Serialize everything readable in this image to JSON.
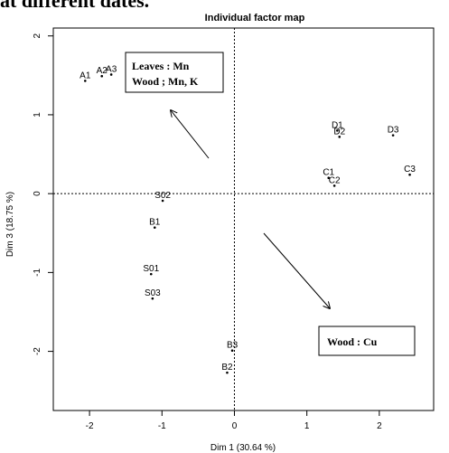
{
  "caption": "at different dates.",
  "chart_data": {
    "type": "scatter",
    "title": "Individual factor map",
    "xlabel": "Dim 1 (30.64 %)",
    "ylabel": "Dim 3 (18.75 %)",
    "xlim": [
      -2.5,
      2.75
    ],
    "ylim": [
      -2.75,
      2.1
    ],
    "xticks": [
      -2,
      -1,
      0,
      1,
      2
    ],
    "yticks": [
      -2,
      -1,
      0,
      1,
      2
    ],
    "reference_lines": {
      "x": 0,
      "y": 0,
      "style": "dotted"
    },
    "points": [
      {
        "label": "A1",
        "x": -2.06,
        "y": 1.43
      },
      {
        "label": "A2",
        "x": -1.83,
        "y": 1.49
      },
      {
        "label": "A3",
        "x": -1.7,
        "y": 1.51
      },
      {
        "label": "D1",
        "x": 1.42,
        "y": 0.8
      },
      {
        "label": "D2",
        "x": 1.45,
        "y": 0.72
      },
      {
        "label": "D3",
        "x": 2.19,
        "y": 0.74
      },
      {
        "label": "C1",
        "x": 1.3,
        "y": 0.2
      },
      {
        "label": "C2",
        "x": 1.38,
        "y": 0.1
      },
      {
        "label": "C3",
        "x": 2.42,
        "y": 0.24
      },
      {
        "label": "S02",
        "x": -0.99,
        "y": -0.09
      },
      {
        "label": "B1",
        "x": -1.1,
        "y": -0.43
      },
      {
        "label": "S01",
        "x": -1.15,
        "y": -1.02
      },
      {
        "label": "S03",
        "x": -1.13,
        "y": -1.33
      },
      {
        "label": "B3",
        "x": -0.03,
        "y": -1.99
      },
      {
        "label": "B2",
        "x": -0.1,
        "y": -2.27
      }
    ],
    "annotations": [
      {
        "text": [
          "Leaves : Mn",
          "Wood ; Mn, K"
        ]
      },
      {
        "text": [
          "Wood : Cu"
        ]
      }
    ]
  }
}
